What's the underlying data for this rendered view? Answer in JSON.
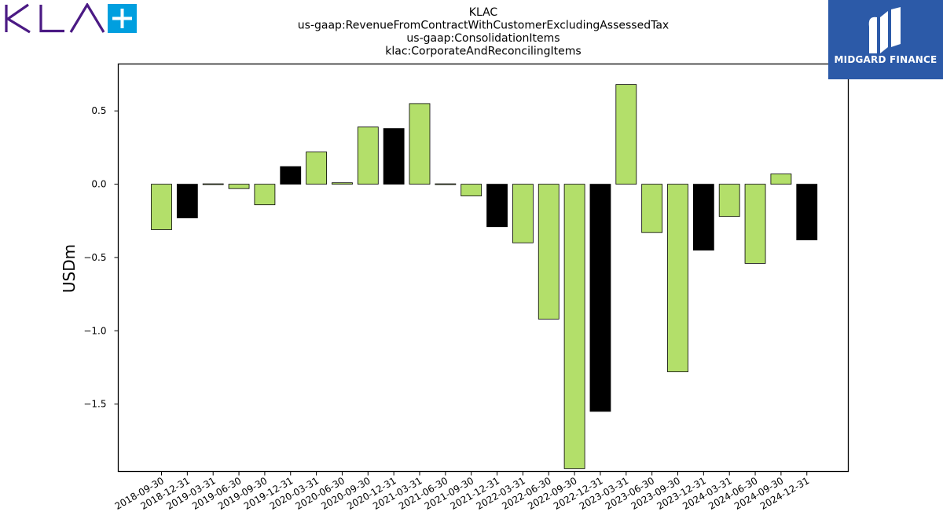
{
  "logos": {
    "left": {
      "text": "KLA+",
      "color": "#4b1a84",
      "plus_color": "#009fdf"
    },
    "right": {
      "text": "MIDGARD FINANCE",
      "background": "#2c5aa8"
    }
  },
  "chart_data": {
    "type": "bar",
    "title_lines": [
      "KLAC",
      "us-gaap:RevenueFromContractWithCustomerExcludingAssessedTax",
      "us-gaap:ConsolidationItems",
      "klac:CorporateAndReconcilingItems"
    ],
    "xlabel": "",
    "ylabel": "USDm",
    "ylim": [
      -1.96,
      0.82
    ],
    "yticks": [
      0.5,
      0.0,
      -0.5,
      -1.0,
      -1.5
    ],
    "ytick_labels": [
      "0.5",
      "0.0",
      "−0.5",
      "−1.0",
      "−1.5"
    ],
    "grid": false,
    "colors": {
      "quarter": "#b3df6a",
      "year_end": "#000000"
    },
    "categories": [
      "2018-09-30",
      "2018-12-31",
      "2019-03-31",
      "2019-06-30",
      "2019-09-30",
      "2019-12-31",
      "2020-03-31",
      "2020-06-30",
      "2020-09-30",
      "2020-12-31",
      "2021-03-31",
      "2021-06-30",
      "2021-09-30",
      "2021-12-31",
      "2022-03-31",
      "2022-06-30",
      "2022-09-30",
      "2022-12-31",
      "2023-03-31",
      "2023-06-30",
      "2023-09-30",
      "2023-12-31",
      "2024-03-31",
      "2024-06-30",
      "2024-09-30",
      "2024-12-31"
    ],
    "values": [
      -0.31,
      -0.23,
      0.005,
      -0.03,
      -0.14,
      0.12,
      0.22,
      0.01,
      0.39,
      0.38,
      0.55,
      0.0,
      -0.08,
      -0.29,
      -0.4,
      -0.92,
      -1.94,
      -1.55,
      0.68,
      -0.33,
      -1.28,
      -0.45,
      -0.22,
      -0.54,
      0.07,
      -0.38
    ]
  }
}
